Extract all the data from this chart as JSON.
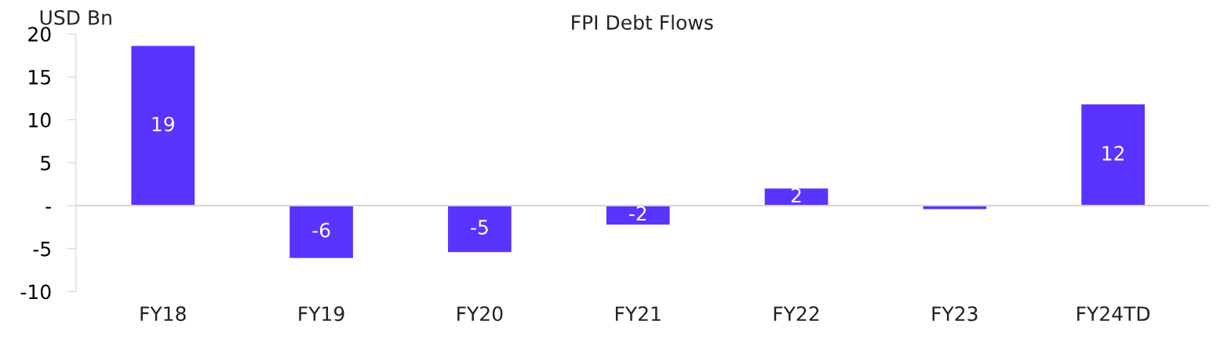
{
  "chart_data": {
    "type": "bar",
    "title": "FPI Debt Flows",
    "ylabel": "USD Bn",
    "categories": [
      "FY18",
      "FY19",
      "FY20",
      "FY21",
      "FY22",
      "FY23",
      "FY24TD"
    ],
    "values": [
      18.6,
      -6.1,
      -5.4,
      -2.2,
      2.0,
      -0.4,
      11.8
    ],
    "value_labels": [
      "19",
      "-6",
      "-5",
      "-2",
      "2",
      null,
      "12"
    ],
    "color": "#5a33ff",
    "ylim": [
      -10,
      20
    ],
    "yticks": [
      -10,
      -5,
      {
        "value": 0,
        "label": "-"
      },
      5,
      10,
      15,
      20
    ],
    "legend": false
  }
}
